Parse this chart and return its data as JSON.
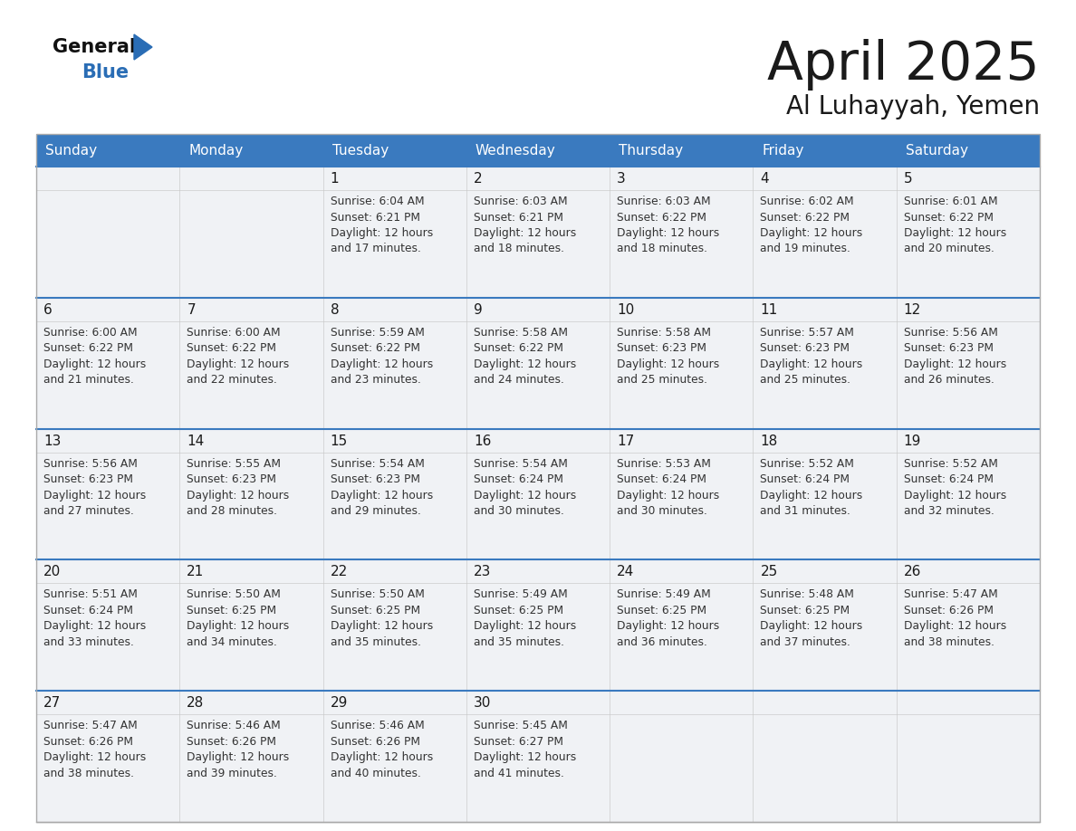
{
  "title": "April 2025",
  "subtitle": "Al Luhayyah, Yemen",
  "days_of_week": [
    "Sunday",
    "Monday",
    "Tuesday",
    "Wednesday",
    "Thursday",
    "Friday",
    "Saturday"
  ],
  "header_bg": "#3a7abf",
  "header_text": "#ffffff",
  "row_separator_color": "#3a7abf",
  "cell_bg": "#f0f2f5",
  "title_color": "#1a1a1a",
  "subtitle_color": "#1a1a1a",
  "day_num_color": "#1a1a1a",
  "cell_text_color": "#333333",
  "bg_color": "#ffffff",
  "logo_general_color": "#111111",
  "logo_blue_color": "#2a6db5",
  "logo_triangle_color": "#2a6db5",
  "calendar": [
    [
      {
        "day": null,
        "sunrise": null,
        "sunset": null,
        "daylight_min": null
      },
      {
        "day": null,
        "sunrise": null,
        "sunset": null,
        "daylight_min": null
      },
      {
        "day": 1,
        "sunrise": "6:04 AM",
        "sunset": "6:21 PM",
        "daylight_min": 17
      },
      {
        "day": 2,
        "sunrise": "6:03 AM",
        "sunset": "6:21 PM",
        "daylight_min": 18
      },
      {
        "day": 3,
        "sunrise": "6:03 AM",
        "sunset": "6:22 PM",
        "daylight_min": 18
      },
      {
        "day": 4,
        "sunrise": "6:02 AM",
        "sunset": "6:22 PM",
        "daylight_min": 19
      },
      {
        "day": 5,
        "sunrise": "6:01 AM",
        "sunset": "6:22 PM",
        "daylight_min": 20
      }
    ],
    [
      {
        "day": 6,
        "sunrise": "6:00 AM",
        "sunset": "6:22 PM",
        "daylight_min": 21
      },
      {
        "day": 7,
        "sunrise": "6:00 AM",
        "sunset": "6:22 PM",
        "daylight_min": 22
      },
      {
        "day": 8,
        "sunrise": "5:59 AM",
        "sunset": "6:22 PM",
        "daylight_min": 23
      },
      {
        "day": 9,
        "sunrise": "5:58 AM",
        "sunset": "6:22 PM",
        "daylight_min": 24
      },
      {
        "day": 10,
        "sunrise": "5:58 AM",
        "sunset": "6:23 PM",
        "daylight_min": 25
      },
      {
        "day": 11,
        "sunrise": "5:57 AM",
        "sunset": "6:23 PM",
        "daylight_min": 25
      },
      {
        "day": 12,
        "sunrise": "5:56 AM",
        "sunset": "6:23 PM",
        "daylight_min": 26
      }
    ],
    [
      {
        "day": 13,
        "sunrise": "5:56 AM",
        "sunset": "6:23 PM",
        "daylight_min": 27
      },
      {
        "day": 14,
        "sunrise": "5:55 AM",
        "sunset": "6:23 PM",
        "daylight_min": 28
      },
      {
        "day": 15,
        "sunrise": "5:54 AM",
        "sunset": "6:23 PM",
        "daylight_min": 29
      },
      {
        "day": 16,
        "sunrise": "5:54 AM",
        "sunset": "6:24 PM",
        "daylight_min": 30
      },
      {
        "day": 17,
        "sunrise": "5:53 AM",
        "sunset": "6:24 PM",
        "daylight_min": 30
      },
      {
        "day": 18,
        "sunrise": "5:52 AM",
        "sunset": "6:24 PM",
        "daylight_min": 31
      },
      {
        "day": 19,
        "sunrise": "5:52 AM",
        "sunset": "6:24 PM",
        "daylight_min": 32
      }
    ],
    [
      {
        "day": 20,
        "sunrise": "5:51 AM",
        "sunset": "6:24 PM",
        "daylight_min": 33
      },
      {
        "day": 21,
        "sunrise": "5:50 AM",
        "sunset": "6:25 PM",
        "daylight_min": 34
      },
      {
        "day": 22,
        "sunrise": "5:50 AM",
        "sunset": "6:25 PM",
        "daylight_min": 35
      },
      {
        "day": 23,
        "sunrise": "5:49 AM",
        "sunset": "6:25 PM",
        "daylight_min": 35
      },
      {
        "day": 24,
        "sunrise": "5:49 AM",
        "sunset": "6:25 PM",
        "daylight_min": 36
      },
      {
        "day": 25,
        "sunrise": "5:48 AM",
        "sunset": "6:25 PM",
        "daylight_min": 37
      },
      {
        "day": 26,
        "sunrise": "5:47 AM",
        "sunset": "6:26 PM",
        "daylight_min": 38
      }
    ],
    [
      {
        "day": 27,
        "sunrise": "5:47 AM",
        "sunset": "6:26 PM",
        "daylight_min": 38
      },
      {
        "day": 28,
        "sunrise": "5:46 AM",
        "sunset": "6:26 PM",
        "daylight_min": 39
      },
      {
        "day": 29,
        "sunrise": "5:46 AM",
        "sunset": "6:26 PM",
        "daylight_min": 40
      },
      {
        "day": 30,
        "sunrise": "5:45 AM",
        "sunset": "6:27 PM",
        "daylight_min": 41
      },
      {
        "day": null,
        "sunrise": null,
        "sunset": null,
        "daylight_min": null
      },
      {
        "day": null,
        "sunrise": null,
        "sunset": null,
        "daylight_min": null
      },
      {
        "day": null,
        "sunrise": null,
        "sunset": null,
        "daylight_min": null
      }
    ]
  ]
}
